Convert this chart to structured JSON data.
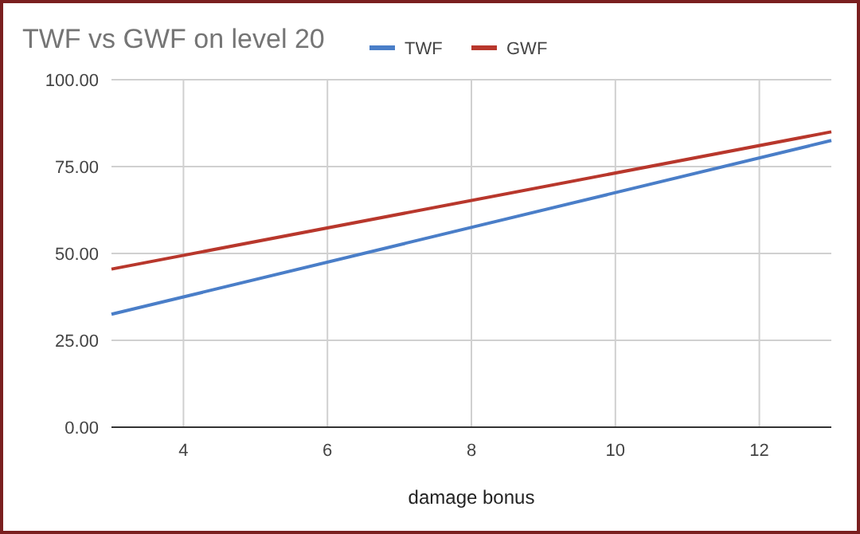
{
  "chart_data": {
    "type": "line",
    "title": "TWF vs GWF on level 20",
    "xlabel": "damage bonus",
    "x": [
      3,
      13
    ],
    "series": [
      {
        "name": "TWF",
        "color": "#4a7ec8",
        "values": [
          32.5,
          82.5
        ]
      },
      {
        "name": "GWF",
        "color": "#b8372c",
        "values": [
          45.5,
          85
        ]
      }
    ],
    "xlim": [
      3,
      13
    ],
    "xticks": [
      4,
      6,
      8,
      10,
      12
    ],
    "ylim": [
      0,
      100
    ],
    "yticks": [
      {
        "value": 0,
        "label": "0.00"
      },
      {
        "value": 25,
        "label": "25.00"
      },
      {
        "value": 50,
        "label": "50.00"
      },
      {
        "value": 75,
        "label": "75.00"
      },
      {
        "value": 100,
        "label": "100.00"
      }
    ],
    "grid": true,
    "legend": "top",
    "marker": "none",
    "line_style": "solid"
  }
}
